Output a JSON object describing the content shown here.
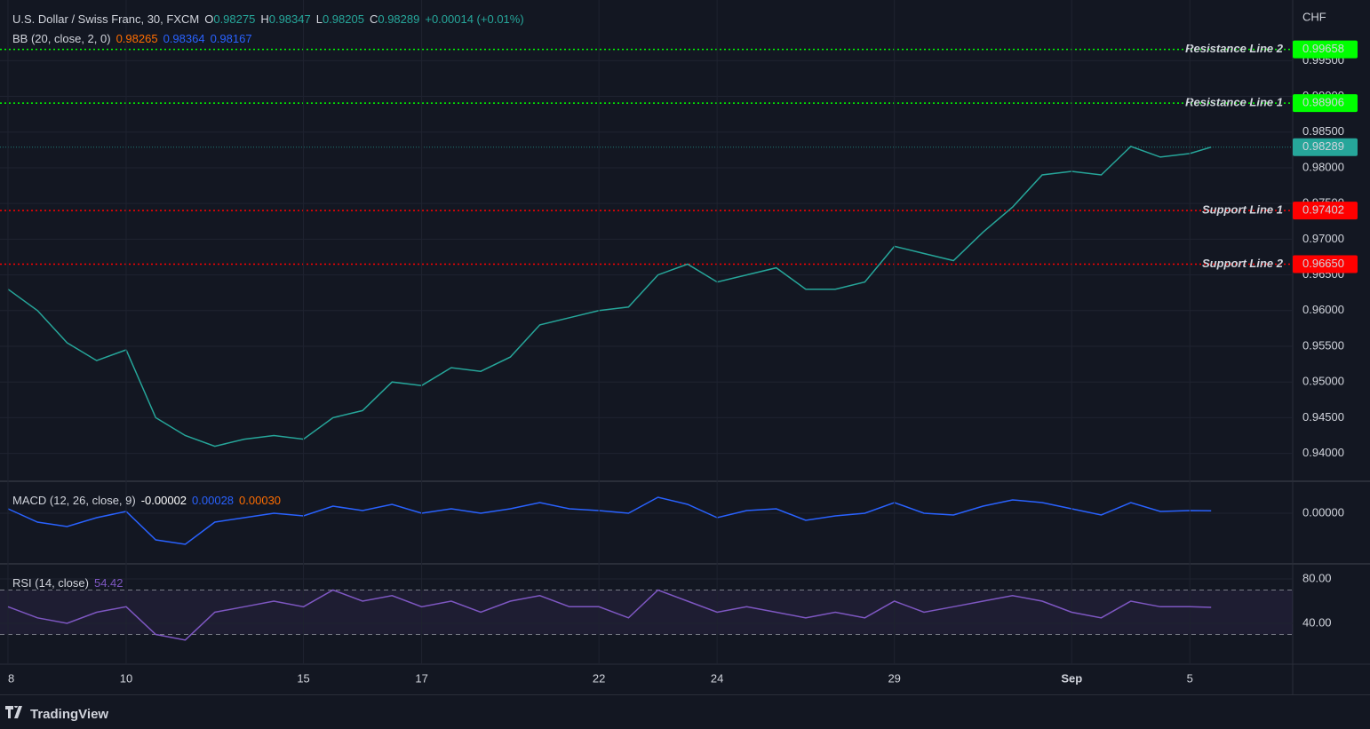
{
  "chart_data": [
    {
      "type": "line",
      "title": "U.S. Dollar / Swiss Franc, 30, FXCM",
      "ohlc": [
        {
          "key": "O",
          "value": "0.98275"
        },
        {
          "key": "H",
          "value": "0.98347"
        },
        {
          "key": "L",
          "value": "0.98205"
        },
        {
          "key": "C",
          "value": "0.98289"
        }
      ],
      "change": "+0.00014 (+0.01%)",
      "indicator": {
        "name": "BB (20, close, 2, 0)",
        "values": [
          {
            "value": "0.98265",
            "color": "#ff6d00"
          },
          {
            "value": "0.98364",
            "color": "#2962ff"
          },
          {
            "value": "0.98167",
            "color": "#2962ff"
          }
        ]
      },
      "axis_unit": "CHF",
      "x": [
        0,
        0.5,
        1,
        1.5,
        2,
        2.5,
        3,
        3.5,
        4,
        4.5,
        5,
        5.5,
        6,
        6.5,
        7,
        7.5,
        8,
        8.5,
        9,
        9.5,
        10,
        10.5,
        11,
        11.5,
        12,
        12.5,
        13,
        13.5,
        14,
        14.5,
        15,
        15.5,
        16,
        16.5,
        17,
        17.5,
        18,
        18.5,
        19,
        19.5,
        20,
        20.36
      ],
      "xlim": [
        -0.135,
        21.74
      ],
      "series": [
        {
          "name": "USDCHF",
          "color": "#26a69a",
          "values": [
            0.963,
            0.96,
            0.9555,
            0.953,
            0.9545,
            0.945,
            0.9425,
            0.941,
            0.942,
            0.9425,
            0.942,
            0.945,
            0.946,
            0.95,
            0.9495,
            0.952,
            0.9515,
            0.9535,
            0.958,
            0.959,
            0.96,
            0.9605,
            0.965,
            0.9665,
            0.964,
            0.965,
            0.966,
            0.963,
            0.963,
            0.964,
            0.969,
            0.968,
            0.967,
            0.971,
            0.9745,
            0.979,
            0.9795,
            0.979,
            0.983,
            0.9815,
            0.982,
            0.98289
          ]
        }
      ],
      "ylim": [
        0.9361,
        1.0035
      ],
      "yticks": [
        {
          "value": 0.94,
          "label": "0.94000"
        },
        {
          "value": 0.945,
          "label": "0.94500"
        },
        {
          "value": 0.95,
          "label": "0.95000"
        },
        {
          "value": 0.955,
          "label": "0.95500"
        },
        {
          "value": 0.96,
          "label": "0.96000"
        },
        {
          "value": 0.965,
          "label": "0.96500"
        },
        {
          "value": 0.97,
          "label": "0.97000"
        },
        {
          "value": 0.975,
          "label": "0.97500"
        },
        {
          "value": 0.98,
          "label": "0.98000"
        },
        {
          "value": 0.985,
          "label": "0.98500"
        },
        {
          "value": 0.99,
          "label": "0.99000"
        },
        {
          "value": 0.995,
          "label": "0.99500"
        }
      ],
      "grid": true,
      "hlines": [
        {
          "name": "Resistance Line 2",
          "value": 0.99658,
          "label": "0.99658",
          "color": "#00ff00"
        },
        {
          "name": "Resistance Line 1",
          "value": 0.98906,
          "label": "0.98906",
          "color": "#00ff00"
        },
        {
          "value": 0.98289,
          "label": "0.98289",
          "color": "#26a69a"
        },
        {
          "name": "Support Line 1",
          "value": 0.97402,
          "label": "0.97402",
          "color": "#ff0000"
        },
        {
          "name": "Support Line 2",
          "value": 0.9665,
          "label": "0.96650",
          "color": "#ff0000"
        }
      ]
    },
    {
      "type": "line",
      "title": "MACD (12, 26, close, 9)",
      "legend_values": [
        {
          "value": "-0.00002",
          "color": "#ffffff"
        },
        {
          "value": "0.00028",
          "color": "#2962ff"
        },
        {
          "value": "0.00030",
          "color": "#ff6d00"
        }
      ],
      "x": [
        0,
        0.5,
        1,
        1.5,
        2,
        2.5,
        3,
        3.5,
        4,
        4.5,
        5,
        5.5,
        6,
        6.5,
        7,
        7.5,
        8,
        8.5,
        9,
        9.5,
        10,
        10.5,
        11,
        11.5,
        12,
        12.5,
        13,
        13.5,
        14,
        14.5,
        15,
        15.5,
        16,
        16.5,
        17,
        17.5,
        18,
        18.5,
        19,
        19.5,
        20,
        20.36
      ],
      "xlim": [
        -0.135,
        21.74
      ],
      "series": [
        {
          "name": "MACD",
          "color": "#2962ff",
          "values": [
            0.0005,
            -0.001,
            -0.0015,
            -0.0005,
            0.0002,
            -0.003,
            -0.0035,
            -0.001,
            -0.0005,
            0,
            -0.0003,
            0.0008,
            0.0003,
            0.001,
            0,
            0.0005,
            0,
            0.0005,
            0.0012,
            0.0005,
            0.0003,
            0,
            0.0018,
            0.001,
            -0.0005,
            0.0003,
            0.0005,
            -0.0008,
            -0.0003,
            0,
            0.0012,
            0,
            -0.0002,
            0.0008,
            0.0015,
            0.0012,
            0.0005,
            -0.0002,
            0.0012,
            0.0002,
            0.0003,
            0.00028
          ]
        }
      ],
      "ylim": [
        -0.0057,
        0.0036
      ],
      "yticks": [
        {
          "value": 0,
          "label": "0.00000"
        }
      ],
      "grid": true
    },
    {
      "type": "line",
      "title": "RSI (14, close)",
      "legend_values": [
        {
          "value": "54.42",
          "color": "#7e57c2"
        }
      ],
      "x": [
        0,
        0.5,
        1,
        1.5,
        2,
        2.5,
        3,
        3.5,
        4,
        4.5,
        5,
        5.5,
        6,
        6.5,
        7,
        7.5,
        8,
        8.5,
        9,
        9.5,
        10,
        10.5,
        11,
        11.5,
        12,
        12.5,
        13,
        13.5,
        14,
        14.5,
        15,
        15.5,
        16,
        16.5,
        17,
        17.5,
        18,
        18.5,
        19,
        19.5,
        20,
        20.36
      ],
      "xlim": [
        -0.135,
        21.74
      ],
      "series": [
        {
          "name": "RSI",
          "color": "#7e57c2",
          "values": [
            55,
            45,
            40,
            50,
            55,
            30,
            25,
            50,
            55,
            60,
            55,
            70,
            60,
            65,
            55,
            60,
            50,
            60,
            65,
            55,
            55,
            45,
            70,
            60,
            50,
            55,
            50,
            45,
            50,
            45,
            60,
            50,
            55,
            60,
            65,
            60,
            50,
            45,
            60,
            55,
            55,
            54.42
          ]
        }
      ],
      "ylim": [
        3.2,
        93.6
      ],
      "yticks": [
        {
          "value": 40,
          "label": "40.00"
        },
        {
          "value": 80,
          "label": "80.00"
        }
      ],
      "band": [
        30,
        70
      ],
      "grid": true,
      "xticks": [
        {
          "value": 0,
          "label": "8"
        },
        {
          "value": 2,
          "label": "10"
        },
        {
          "value": 5,
          "label": "15"
        },
        {
          "value": 7,
          "label": "17"
        },
        {
          "value": 10,
          "label": "22"
        },
        {
          "value": 12,
          "label": "24"
        },
        {
          "value": 15,
          "label": "29"
        },
        {
          "value": 18,
          "label": "Sep"
        },
        {
          "value": 20,
          "label": "5"
        }
      ]
    }
  ],
  "footer": {
    "brand": "TradingView"
  }
}
